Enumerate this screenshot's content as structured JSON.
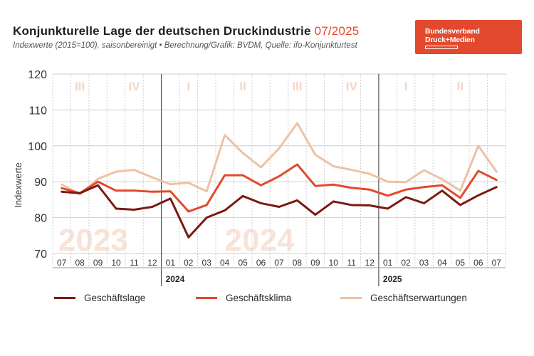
{
  "header": {
    "title": "Konjunkturelle Lage der deutschen Druckindustrie",
    "title_date": "07/2025",
    "subtitle": "Indexwerte (2015=100), saisonbereinigt • Berechnung/Grafik: BVDM, Quelle: ifo-Konjunkturtest"
  },
  "logo": {
    "line1": "Bundesverband",
    "line2": "Druck+Medien"
  },
  "colors": {
    "accent": "#e3492c",
    "lage": "#7a1a12",
    "klima": "#e3492c",
    "erwartungen": "#ebc2a6",
    "watermark": "#f7e3d8",
    "quarter_roman": "#f2d6c5"
  },
  "chart_data": {
    "type": "line",
    "ylabel": "Indexwerte",
    "ylim": [
      70,
      120
    ],
    "yticks": [
      70,
      80,
      90,
      100,
      110,
      120
    ],
    "categories": [
      "07",
      "08",
      "09",
      "10",
      "11",
      "12",
      "01",
      "02",
      "03",
      "04",
      "05",
      "06",
      "07",
      "08",
      "09",
      "10",
      "11",
      "12",
      "01",
      "02",
      "03",
      "04",
      "05",
      "06",
      "07"
    ],
    "year_labels": [
      {
        "label": "2024",
        "at": "01"
      },
      {
        "label": "2025",
        "at": "01"
      }
    ],
    "watermarks": [
      "2023",
      "2024"
    ],
    "quarter_labels": [
      "III",
      "IV",
      "I",
      "II",
      "III",
      "IV",
      "I",
      "II"
    ],
    "series": [
      {
        "name": "Geschäftslage",
        "values": [
          87.2,
          86.8,
          89.0,
          82.5,
          82.2,
          83.0,
          85.3,
          74.5,
          80.0,
          82.0,
          86.0,
          84.0,
          83.0,
          84.8,
          80.8,
          84.5,
          83.5,
          83.4,
          82.5,
          85.7,
          84.0,
          87.5,
          83.5,
          86.2,
          88.5
        ]
      },
      {
        "name": "Geschäftsklima",
        "values": [
          88.2,
          86.8,
          90.0,
          87.5,
          87.5,
          87.2,
          87.3,
          81.7,
          83.5,
          91.8,
          91.8,
          89.0,
          91.5,
          94.8,
          88.8,
          89.2,
          88.3,
          87.8,
          86.1,
          87.8,
          88.5,
          89.0,
          85.5,
          93.0,
          90.5
        ]
      },
      {
        "name": "Geschäftserwartungen",
        "values": [
          89.2,
          86.5,
          90.8,
          92.8,
          93.3,
          91.2,
          89.3,
          89.7,
          87.3,
          103.0,
          98.0,
          94.0,
          99.3,
          106.3,
          97.5,
          94.3,
          93.3,
          92.2,
          90.0,
          89.9,
          93.2,
          90.7,
          87.5,
          100.0,
          92.8
        ]
      }
    ]
  }
}
